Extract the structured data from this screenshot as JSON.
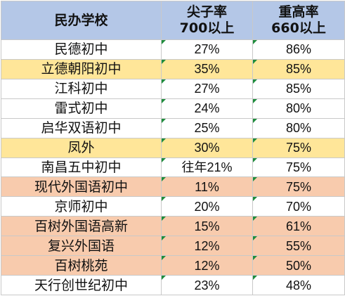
{
  "table": {
    "header": {
      "school": "民办学校",
      "col2": [
        "尖子率",
        "700以上"
      ],
      "col3": [
        "重高率",
        "660以上"
      ]
    },
    "rows": [
      {
        "name": "民德初中",
        "top_rate": "27%",
        "key_rate": "86%",
        "highlight": "none"
      },
      {
        "name": "立德朝阳初中",
        "top_rate": "35%",
        "key_rate": "85%",
        "highlight": "yellow"
      },
      {
        "name": "江科初中",
        "top_rate": "27%",
        "key_rate": "85%",
        "highlight": "none"
      },
      {
        "name": "雷式初中",
        "top_rate": "24%",
        "key_rate": "80%",
        "highlight": "none"
      },
      {
        "name": "启华双语初中",
        "top_rate": "25%",
        "key_rate": "80%",
        "highlight": "none"
      },
      {
        "name": "凤外",
        "top_rate": "30%",
        "key_rate": "75%",
        "highlight": "yellow"
      },
      {
        "name": "南昌五中初中",
        "top_rate": "往年21%",
        "key_rate": "75%",
        "highlight": "none"
      },
      {
        "name": "现代外国语初中",
        "top_rate": "11%",
        "key_rate": "75%",
        "highlight": "orange"
      },
      {
        "name": "京师初中",
        "top_rate": "20%",
        "key_rate": "70%",
        "highlight": "none"
      },
      {
        "name": "百树外国语高新",
        "top_rate": "15%",
        "key_rate": "61%",
        "highlight": "orange"
      },
      {
        "name": "复兴外国语",
        "top_rate": "12%",
        "key_rate": "55%",
        "highlight": "orange"
      },
      {
        "name": "百树桃苑",
        "top_rate": "12%",
        "key_rate": "50%",
        "highlight": "orange"
      },
      {
        "name": "天行创世纪初中",
        "top_rate": "23%",
        "key_rate": "48%",
        "highlight": "none"
      }
    ]
  },
  "colors": {
    "header_bg": "#b4c7e7",
    "highlight_yellow": "#ffe699",
    "highlight_orange": "#f8cbad",
    "border": "#c9c9c9",
    "corner_marker": "#1e8c3c"
  }
}
